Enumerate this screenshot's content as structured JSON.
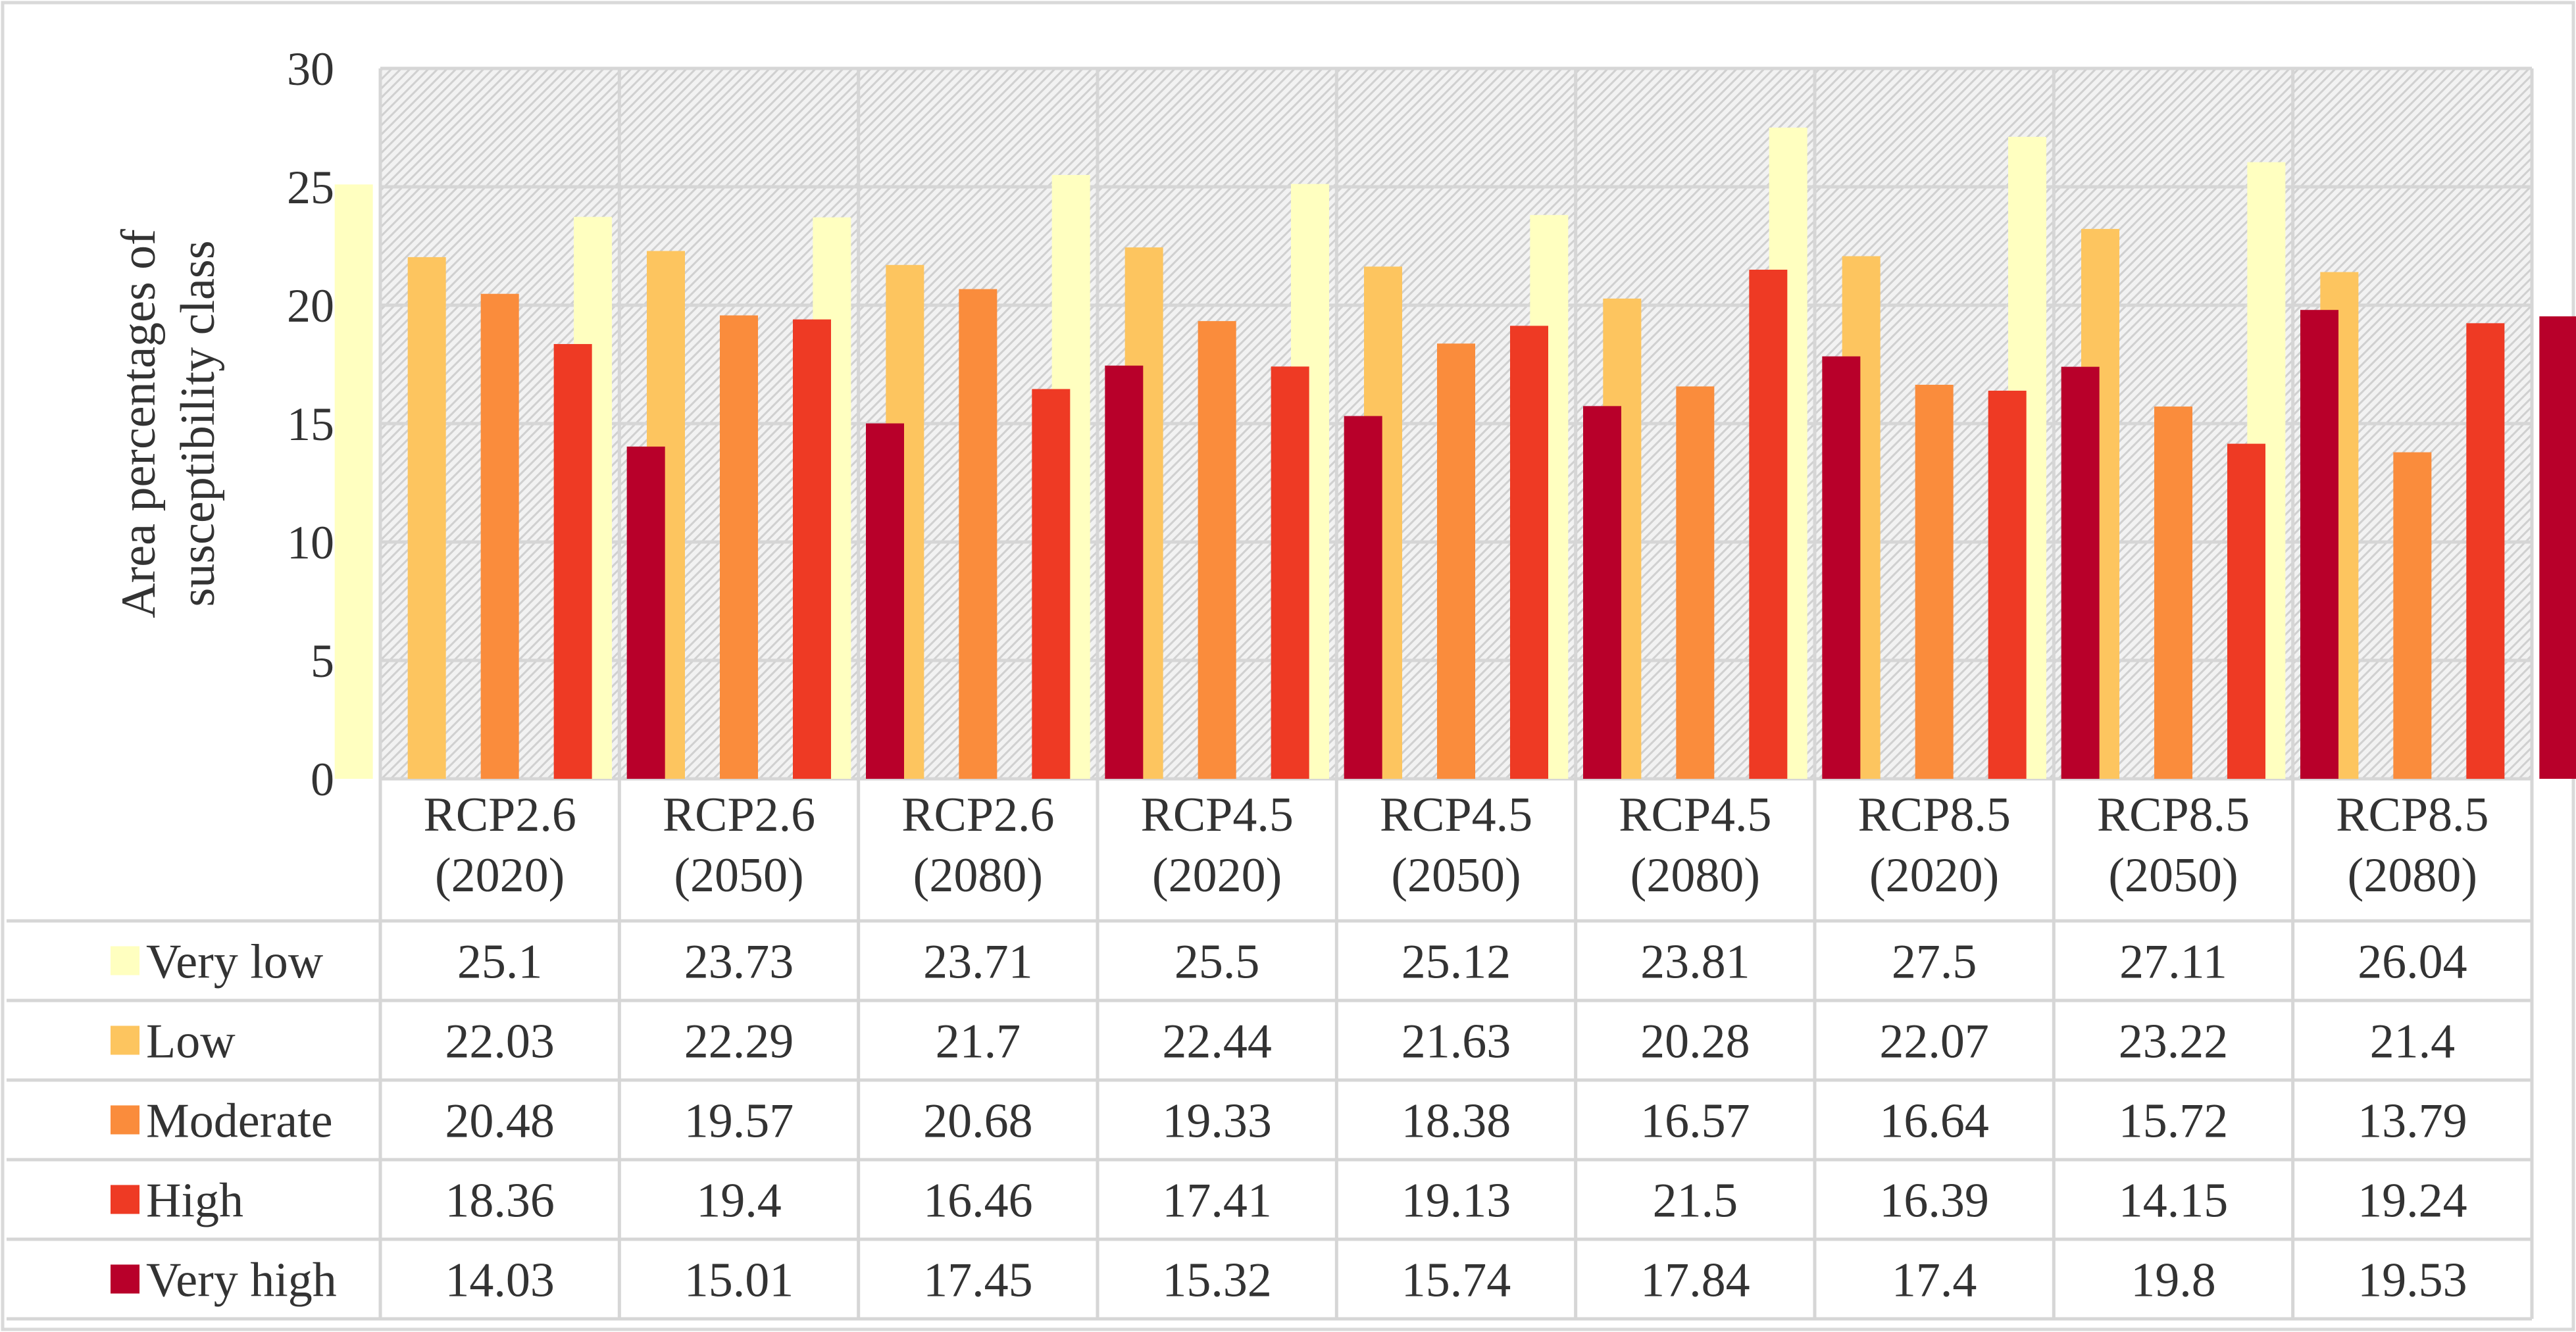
{
  "chart_data": {
    "type": "bar",
    "title": "",
    "xlabel": "",
    "ylabel": [
      "Area percentages of",
      "susceptibility class"
    ],
    "ylim": [
      0,
      30
    ],
    "yticks": [
      0,
      5,
      10,
      15,
      20,
      25,
      30
    ],
    "grid": true,
    "legend": "data-table",
    "categories": [
      [
        "RCP2.6",
        "(2020)"
      ],
      [
        "RCP2.6",
        "(2050)"
      ],
      [
        "RCP2.6",
        "(2080)"
      ],
      [
        "RCP4.5",
        "(2020)"
      ],
      [
        "RCP4.5",
        "(2050)"
      ],
      [
        "RCP4.5",
        "(2080)"
      ],
      [
        "RCP8.5",
        "(2020)"
      ],
      [
        "RCP8.5",
        "(2050)"
      ],
      [
        "RCP8.5",
        "(2080)"
      ]
    ],
    "series": [
      {
        "name": "Very low",
        "color": "#FFFFC0",
        "values": [
          "25.1",
          "23.73",
          "23.71",
          "25.5",
          "25.12",
          "23.81",
          "27.5",
          "27.11",
          "26.04"
        ]
      },
      {
        "name": "Low",
        "color": "#FDC55F",
        "values": [
          "22.03",
          "22.29",
          "21.7",
          "22.44",
          "21.63",
          "20.28",
          "22.07",
          "23.22",
          "21.4"
        ]
      },
      {
        "name": "Moderate",
        "color": "#FA8C3C",
        "values": [
          "20.48",
          "19.57",
          "20.68",
          "19.33",
          "18.38",
          "16.57",
          "16.64",
          "15.72",
          "13.79"
        ]
      },
      {
        "name": "High",
        "color": "#EE3A24",
        "values": [
          "18.36",
          "19.4",
          "16.46",
          "17.41",
          "19.13",
          "21.5",
          "16.39",
          "14.15",
          "19.24"
        ]
      },
      {
        "name": "Very high",
        "color": "#B8002A",
        "values": [
          "14.03",
          "15.01",
          "17.45",
          "15.32",
          "15.74",
          "17.84",
          "17.4",
          "19.8",
          "19.53"
        ]
      }
    ]
  }
}
